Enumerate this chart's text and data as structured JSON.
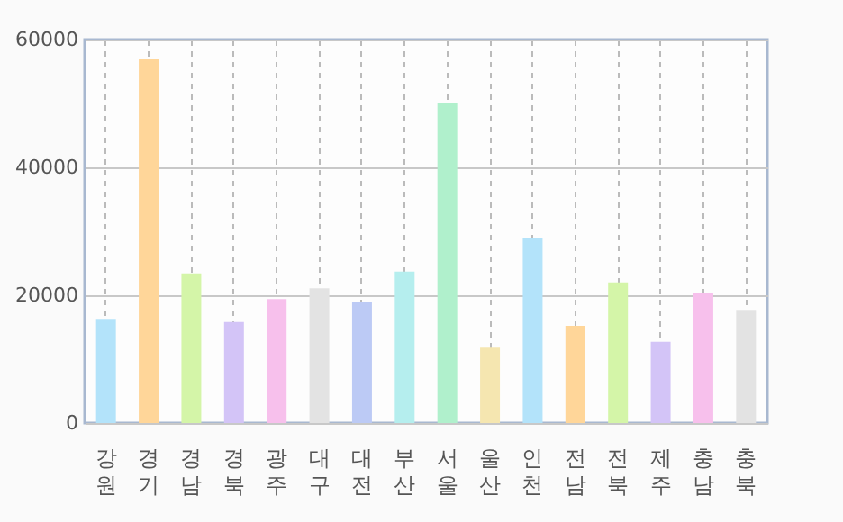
{
  "chart_data": {
    "type": "bar",
    "categories": [
      "강원",
      "경기",
      "경남",
      "경북",
      "광주",
      "대구",
      "대전",
      "부산",
      "서울",
      "울산",
      "인천",
      "전남",
      "전북",
      "제주",
      "충남",
      "충북"
    ],
    "values": [
      16300,
      56900,
      23400,
      15800,
      19400,
      21100,
      18900,
      23700,
      50100,
      11800,
      29000,
      15200,
      22000,
      12700,
      20300,
      17700
    ],
    "colors": [
      "#b3e3fa",
      "#ffd699",
      "#d4f5a8",
      "#d3c4f7",
      "#f7c0ec",
      "#e3e3e3",
      "#bccaf5",
      "#b5eeee",
      "#b0f0cc",
      "#f5e6b0",
      "#b3e3fa",
      "#ffd699",
      "#d4f5a8",
      "#d3c4f7",
      "#f7c0ec",
      "#e3e3e3"
    ],
    "ylim": [
      0,
      60000
    ],
    "yticks": [
      0,
      20000,
      40000,
      60000
    ],
    "grid": true
  }
}
